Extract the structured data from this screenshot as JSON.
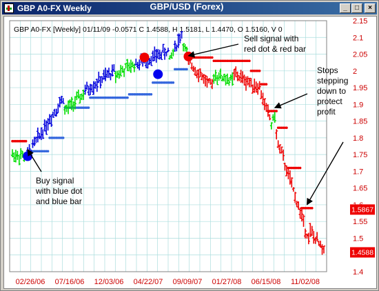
{
  "window": {
    "title": "GBP A0-FX Weekly",
    "minimize_label": "_",
    "maximize_label": "□",
    "close_label": "×"
  },
  "colors": {
    "title_bar": "#0a246a",
    "up_bar": "#00dd00",
    "down_bar": "#ee0000",
    "blue_bar": "#0000dd",
    "buy_dot": "#3366dd",
    "sell_dot": "#ee0000",
    "grid": "#aadddd",
    "axis_text": "#cc0000",
    "last_box": "#ee0000"
  },
  "chart_data": {
    "type": "bar",
    "title": "GBP/USD (Forex)",
    "info_line": "GBP A0-FX [Weekly] 01/11/09  -0.0571 C 1.4588, H 1.5181, L 1.4470, O 1.5160, V 0",
    "ylim": [
      1.4,
      2.15
    ],
    "yticks": [
      "2.15",
      "2.1",
      "2.05",
      "2",
      "1.95",
      "1.9",
      "1.85",
      "1.8",
      "1.75",
      "1.7",
      "1.65",
      "1.6",
      "1.55",
      "1.5",
      "1.45",
      "1.4"
    ],
    "xticks": [
      "02/26/06",
      "07/16/06",
      "12/03/06",
      "04/22/07",
      "09/09/07",
      "01/27/08",
      "06/15/08",
      "11/02/08"
    ],
    "grid": true,
    "price_labels": [
      {
        "text": "1.5867",
        "value": 1.5867
      },
      {
        "text": "1.4588",
        "value": 1.4588
      }
    ],
    "segments": [
      {
        "name": "green",
        "from": 0,
        "to": 8,
        "p0": 1.75,
        "p1": 1.745
      },
      {
        "name": "blue",
        "from": 9,
        "to": 30,
        "p0": 1.75,
        "p1": 1.92
      },
      {
        "name": "green",
        "from": 31,
        "to": 42,
        "p0": 1.88,
        "p1": 1.93
      },
      {
        "name": "blue",
        "from": 43,
        "to": 60,
        "p0": 1.94,
        "p1": 2.0
      },
      {
        "name": "green",
        "from": 61,
        "to": 72,
        "p0": 1.99,
        "p1": 2.02
      },
      {
        "name": "blue",
        "from": 73,
        "to": 92,
        "p0": 2.02,
        "p1": 2.06
      },
      {
        "name": "green",
        "from": 93,
        "to": 95,
        "p0": 2.03,
        "p1": 2.06
      },
      {
        "name": "blue",
        "from": 96,
        "to": 100,
        "p0": 2.07,
        "p1": 2.11
      },
      {
        "name": "green",
        "from": 101,
        "to": 103,
        "p0": 2.08,
        "p1": 2.05
      },
      {
        "name": "red",
        "from": 104,
        "to": 118,
        "p0": 2.03,
        "p1": 1.95
      },
      {
        "name": "green",
        "from": 119,
        "to": 130,
        "p0": 1.99,
        "p1": 1.97
      },
      {
        "name": "red",
        "from": 131,
        "to": 146,
        "p0": 1.99,
        "p1": 1.95
      },
      {
        "name": "red",
        "from": 147,
        "to": 152,
        "p0": 1.93,
        "p1": 1.86
      },
      {
        "name": "green",
        "from": 153,
        "to": 155,
        "p0": 1.84,
        "p1": 1.87
      },
      {
        "name": "red",
        "from": 156,
        "to": 175,
        "p0": 1.8,
        "p1": 1.5
      },
      {
        "name": "red",
        "from": 176,
        "to": 184,
        "p0": 1.52,
        "p1": 1.46
      }
    ],
    "buy_stop_steps": [
      {
        "from": 9,
        "to": 21,
        "value": 1.76
      },
      {
        "from": 22,
        "to": 30,
        "value": 1.8
      },
      {
        "from": 31,
        "to": 45,
        "value": 1.89
      },
      {
        "from": 46,
        "to": 68,
        "value": 1.92
      },
      {
        "from": 69,
        "to": 82,
        "value": 1.93
      },
      {
        "from": 83,
        "to": 95,
        "value": 1.965
      },
      {
        "from": 96,
        "to": 103,
        "value": 2.005
      }
    ],
    "sell_stop_steps": [
      {
        "from": 0,
        "to": 8,
        "value": 1.79
      },
      {
        "from": 104,
        "to": 118,
        "value": 2.04
      },
      {
        "from": 119,
        "to": 140,
        "value": 2.03
      },
      {
        "from": 141,
        "to": 146,
        "value": 2.0
      },
      {
        "from": 147,
        "to": 150,
        "value": 1.96
      },
      {
        "from": 151,
        "to": 156,
        "value": 1.88
      },
      {
        "from": 157,
        "to": 162,
        "value": 1.83
      },
      {
        "from": 163,
        "to": 170,
        "value": 1.71
      },
      {
        "from": 171,
        "to": 177,
        "value": 1.59
      }
    ],
    "signals": [
      {
        "type": "buy",
        "index": 9,
        "value": 1.745,
        "color": "#0000ee"
      },
      {
        "type": "buy",
        "index": 86,
        "value": 1.99,
        "color": "#0000ee"
      },
      {
        "type": "sell",
        "index": 78,
        "value": 2.04,
        "color": "#ee0000"
      },
      {
        "type": "sell",
        "index": 104,
        "value": 2.043,
        "color": "#ee0000"
      }
    ],
    "annotations": [
      {
        "lines": [
          "Buy signal",
          "with blue dot",
          "and blue bar"
        ],
        "arrow_to_index": 9,
        "arrow_to_value": 1.765
      },
      {
        "lines": [
          "Sell signal with",
          "red dot & red bar"
        ],
        "arrow_to_index": 104,
        "arrow_to_value": 2.045
      },
      {
        "lines": [
          "Stops",
          "stepping",
          "down to",
          "protect",
          "profit"
        ],
        "arrow_to_index": 155,
        "arrow_to_value": 1.89
      }
    ],
    "annotation_arrow_2": {
      "arrow_to_index": 174,
      "arrow_to_value": 1.6
    }
  }
}
